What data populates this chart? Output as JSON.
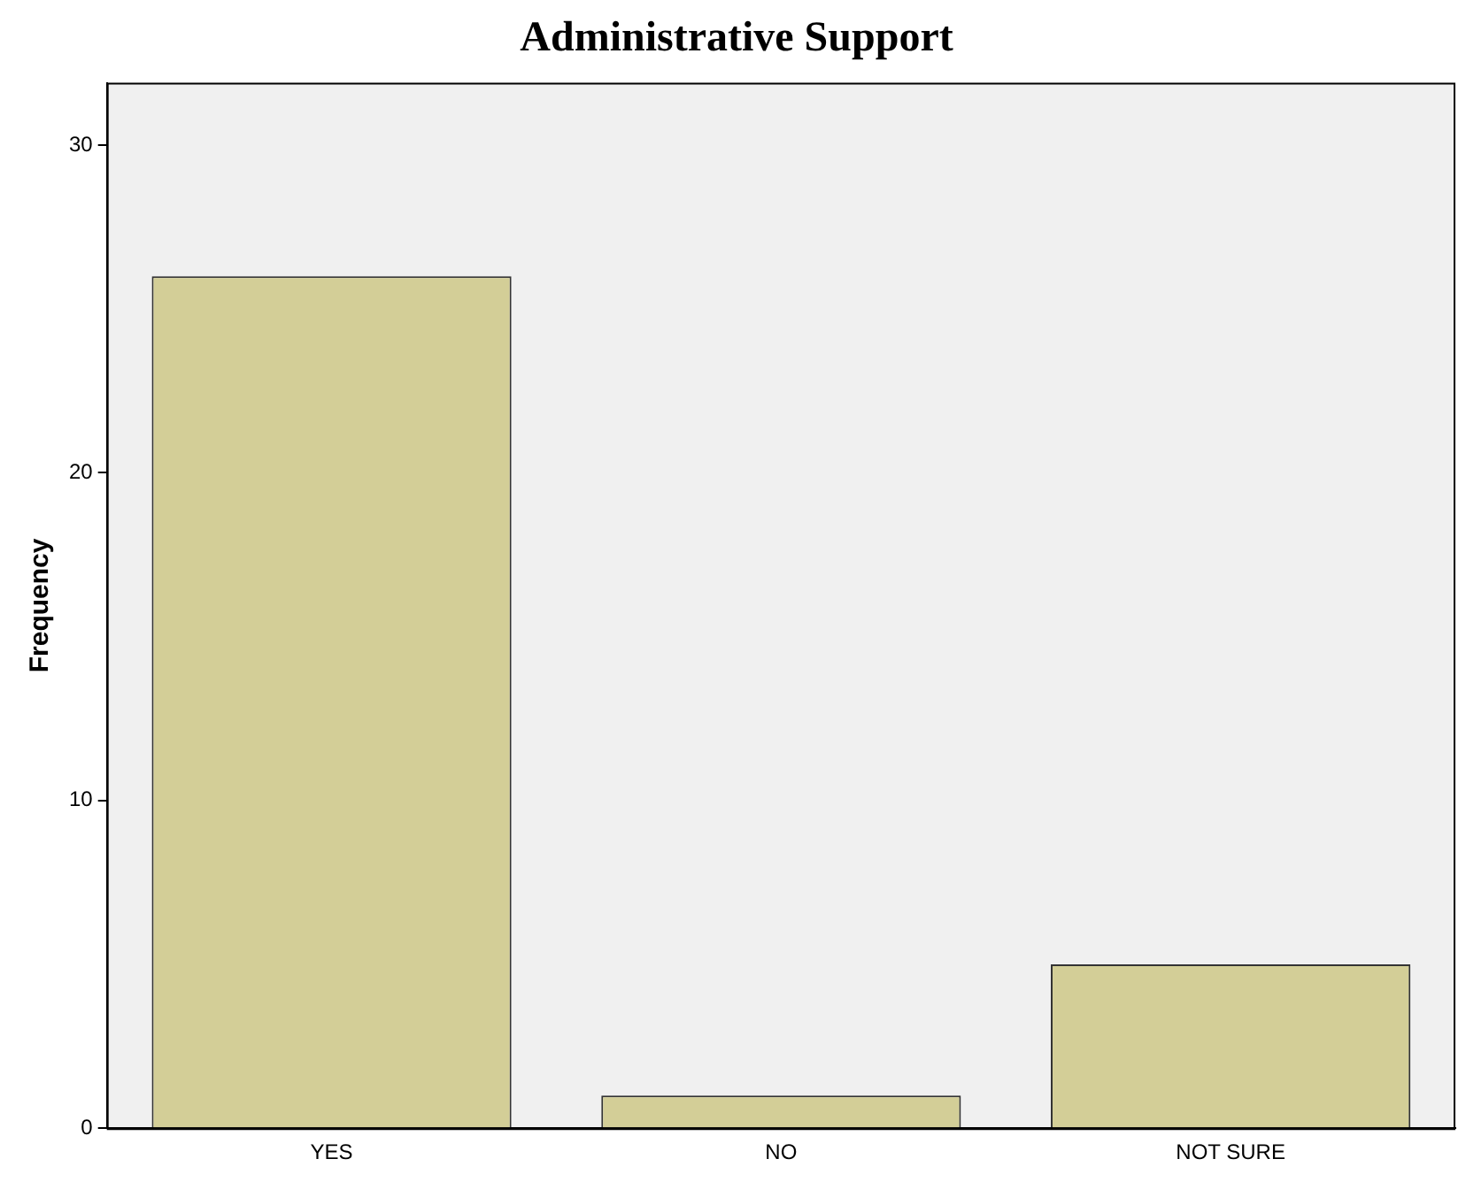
{
  "chart_data": {
    "type": "bar",
    "title": "Administrative Support",
    "ylabel": "Frequency",
    "categories": [
      "YES",
      "NO",
      "NOT SURE"
    ],
    "values": [
      26,
      1,
      5
    ],
    "color": "#d3ce97",
    "ylim": [
      0,
      31.9
    ],
    "yticks": [
      0,
      10,
      20,
      30
    ],
    "grid": false,
    "legend": false
  }
}
